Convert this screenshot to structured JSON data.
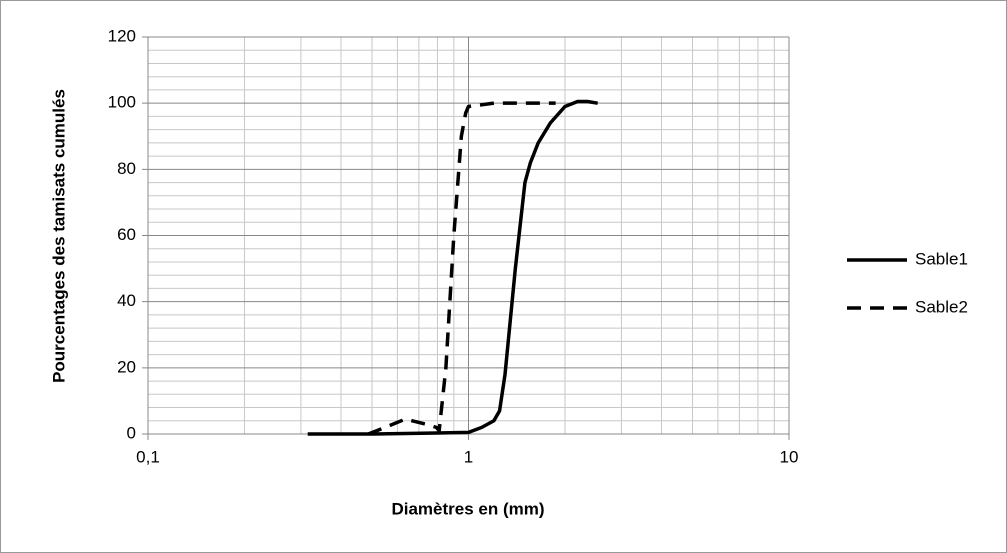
{
  "chart_data": {
    "type": "line",
    "xlabel": "Diamètres en (mm)",
    "ylabel": "Pourcentages des tamisats cumulés",
    "xscale": "log",
    "xlim": [
      0.1,
      10
    ],
    "xticks": [
      {
        "value": 0.1,
        "label": "0,1"
      },
      1,
      10
    ],
    "xminorticks": [
      0.2,
      0.3,
      0.4,
      0.5,
      0.6,
      0.7,
      0.8,
      0.9,
      2,
      3,
      4,
      5,
      6,
      7,
      8,
      9
    ],
    "ylim": [
      0,
      120
    ],
    "yticks": [
      0,
      20,
      40,
      60,
      80,
      100,
      120
    ],
    "yminorticks": [
      4,
      8,
      12,
      16,
      24,
      28,
      32,
      36,
      44,
      48,
      52,
      56,
      64,
      68,
      72,
      76,
      84,
      88,
      92,
      96,
      104,
      108,
      112,
      116
    ],
    "grid": true,
    "legend": "right",
    "series": [
      {
        "name": "Sable1",
        "color": "#000000",
        "dash": false,
        "x": [
          0.315,
          0.5,
          0.8,
          1.0,
          1.1,
          1.2,
          1.25,
          1.3,
          1.4,
          1.5,
          1.56,
          1.65,
          1.8,
          2.0,
          2.19,
          2.35,
          2.53
        ],
        "values": [
          0,
          0,
          0.3,
          0.5,
          2,
          4,
          7,
          18,
          50,
          76,
          82,
          88,
          94,
          99,
          100.5,
          100.5,
          100
        ]
      },
      {
        "name": "Sable2",
        "color": "#000000",
        "dash": true,
        "x": [
          0.487,
          0.55,
          0.635,
          0.734,
          0.794,
          0.81,
          0.85,
          0.9,
          0.95,
          0.98,
          1.0,
          1.2,
          1.6,
          1.87
        ],
        "values": [
          0,
          2,
          4.5,
          3,
          2,
          1,
          20,
          60,
          90,
          97,
          99,
          100,
          100,
          100
        ]
      }
    ]
  }
}
